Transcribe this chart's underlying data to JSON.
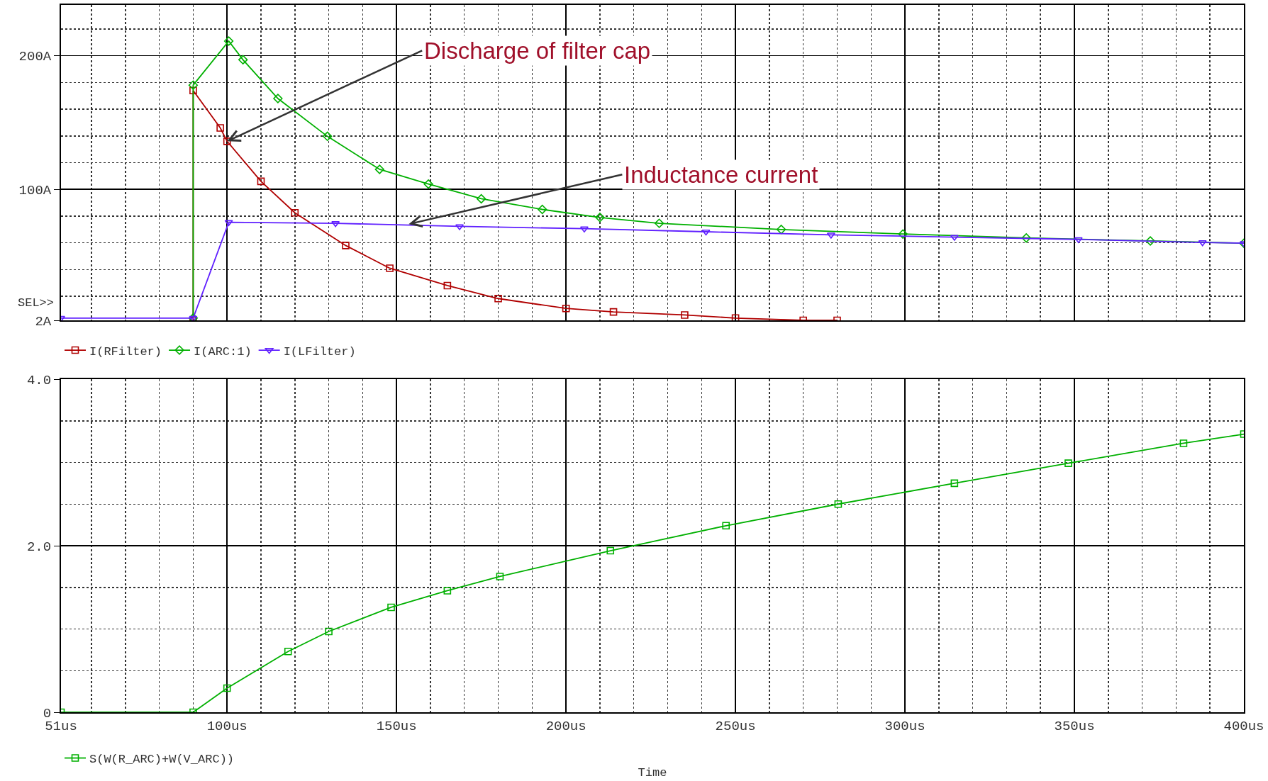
{
  "chart_data": [
    {
      "type": "line",
      "annotations": [
        {
          "text": "Discharge of filter cap",
          "x": 100,
          "y": 136
        },
        {
          "text": "Inductance current",
          "x": 153.6,
          "y": 74
        },
        "SEL>>"
      ],
      "series": [
        {
          "name": "I(RFilter)",
          "color": "#b00000",
          "marker": "square",
          "x": [
            90,
            90,
            98,
            100,
            110,
            120,
            135,
            148,
            165,
            180,
            200,
            214,
            235,
            250,
            270,
            280
          ],
          "values": [
            2,
            174,
            146,
            136,
            106,
            82.5,
            58,
            41,
            28,
            18.3,
            10.9,
            8.3,
            6,
            3.7,
            2,
            2
          ]
        },
        {
          "name": "I(ARC:1)",
          "color": "#00b000",
          "marker": "diamond",
          "x": [
            90,
            90,
            100.5,
            104.7,
            115,
            129.6,
            145,
            159.4,
            175,
            193,
            210,
            227.5,
            263.5,
            299.4,
            335.8,
            372.4,
            400
          ],
          "values": [
            3.7,
            178,
            211,
            197,
            168,
            139.7,
            115,
            104,
            93,
            85,
            79,
            74.6,
            70,
            66.6,
            63.7,
            61.4,
            59.7
          ]
        },
        {
          "name": "I(LFilter)",
          "color": "#6020ff",
          "marker": "triangle",
          "x": [
            51,
            90,
            100.5,
            132,
            168.6,
            205.4,
            241.3,
            278.2,
            314.6,
            351.2,
            387.8,
            400
          ],
          "values": [
            3.7,
            3.7,
            75.4,
            74.6,
            72.3,
            70.6,
            68.3,
            66,
            64.3,
            62.6,
            60.3,
            59.7
          ]
        }
      ],
      "xlim": [
        51,
        400
      ],
      "xticks": [
        51,
        {
          "value": 60,
          "label": null
        },
        {
          "value": 70,
          "label": null
        },
        {
          "value": 80,
          "label": null
        },
        {
          "value": 90,
          "label": null
        },
        100,
        {
          "value": 110,
          "label": null
        },
        {
          "value": 120,
          "label": null
        },
        {
          "value": 130,
          "label": null
        },
        {
          "value": 140,
          "label": null
        },
        150,
        {
          "value": 160,
          "label": null
        },
        {
          "value": 170,
          "label": null
        },
        {
          "value": 180,
          "label": null
        },
        {
          "value": 190,
          "label": null
        },
        200,
        {
          "value": 210,
          "label": null
        },
        {
          "value": 220,
          "label": null
        },
        {
          "value": 230,
          "label": null
        },
        {
          "value": 240,
          "label": null
        },
        250,
        {
          "value": 260,
          "label": null
        },
        {
          "value": 270,
          "label": null
        },
        {
          "value": 280,
          "label": null
        },
        {
          "value": 290,
          "label": null
        },
        300,
        {
          "value": 310,
          "label": null
        },
        {
          "value": 320,
          "label": null
        },
        {
          "value": 330,
          "label": null
        },
        {
          "value": 340,
          "label": null
        },
        350,
        {
          "value": 360,
          "label": null
        },
        {
          "value": 370,
          "label": null
        },
        {
          "value": 380,
          "label": null
        },
        {
          "value": 390,
          "label": null
        },
        400
      ],
      "ylim": [
        2,
        238
      ],
      "yticks": [
        {
          "value": 2,
          "label": "2A"
        },
        {
          "value": 20,
          "label": null
        },
        {
          "value": 40,
          "label": null
        },
        {
          "value": 60,
          "label": null
        },
        {
          "value": 80,
          "label": null
        },
        {
          "value": 100,
          "label": "100A"
        },
        {
          "value": 120,
          "label": null
        },
        {
          "value": 140,
          "label": null
        },
        {
          "value": 160,
          "label": null
        },
        {
          "value": 180,
          "label": null
        },
        {
          "value": 200,
          "label": "200A"
        },
        {
          "value": 220,
          "label": null
        }
      ],
      "grid": true,
      "legend": "bottom",
      "tick_labels": "y",
      "line_style": "solid"
    },
    {
      "type": "line",
      "xlabel": "Time",
      "series": [
        {
          "name": "S(W(R_ARC)+W(V_ARC))",
          "color": "#00b000",
          "marker": "square",
          "x": [
            51,
            90,
            100,
            118,
            130,
            148.4,
            165,
            180.5,
            213.1,
            247.2,
            280.3,
            314.6,
            348.2,
            382.2,
            400
          ],
          "values": [
            0,
            0,
            0.29,
            0.73,
            0.97,
            1.26,
            1.46,
            1.63,
            1.94,
            2.24,
            2.5,
            2.75,
            2.99,
            3.23,
            3.34
          ]
        }
      ],
      "xlim": [
        51,
        400
      ],
      "xticks": [
        {
          "value": 51,
          "label": "51us"
        },
        {
          "value": 60,
          "label": null
        },
        {
          "value": 70,
          "label": null
        },
        {
          "value": 80,
          "label": null
        },
        {
          "value": 90,
          "label": null
        },
        {
          "value": 100,
          "label": "100us"
        },
        {
          "value": 110,
          "label": null
        },
        {
          "value": 120,
          "label": null
        },
        {
          "value": 130,
          "label": null
        },
        {
          "value": 140,
          "label": null
        },
        {
          "value": 150,
          "label": "150us"
        },
        {
          "value": 160,
          "label": null
        },
        {
          "value": 170,
          "label": null
        },
        {
          "value": 180,
          "label": null
        },
        {
          "value": 190,
          "label": null
        },
        {
          "value": 200,
          "label": "200us"
        },
        {
          "value": 210,
          "label": null
        },
        {
          "value": 220,
          "label": null
        },
        {
          "value": 230,
          "label": null
        },
        {
          "value": 240,
          "label": null
        },
        {
          "value": 250,
          "label": "250us"
        },
        {
          "value": 260,
          "label": null
        },
        {
          "value": 270,
          "label": null
        },
        {
          "value": 280,
          "label": null
        },
        {
          "value": 290,
          "label": null
        },
        {
          "value": 300,
          "label": "300us"
        },
        {
          "value": 310,
          "label": null
        },
        {
          "value": 320,
          "label": null
        },
        {
          "value": 330,
          "label": null
        },
        {
          "value": 340,
          "label": null
        },
        {
          "value": 350,
          "label": "350us"
        },
        {
          "value": 360,
          "label": null
        },
        {
          "value": 370,
          "label": null
        },
        {
          "value": 380,
          "label": null
        },
        {
          "value": 390,
          "label": null
        },
        {
          "value": 400,
          "label": "400us"
        }
      ],
      "ylim": [
        0,
        4
      ],
      "yticks": [
        0,
        {
          "value": 0.5,
          "label": null
        },
        {
          "value": 1,
          "label": null
        },
        {
          "value": 1.5,
          "label": null
        },
        {
          "value": 2,
          "label": "2.0"
        },
        {
          "value": 2.5,
          "label": null
        },
        {
          "value": 3,
          "label": null
        },
        {
          "value": 3.5,
          "label": null
        },
        {
          "value": 4,
          "label": "4.0"
        }
      ],
      "grid": true,
      "legend": "bottom",
      "line_style": "solid"
    }
  ]
}
